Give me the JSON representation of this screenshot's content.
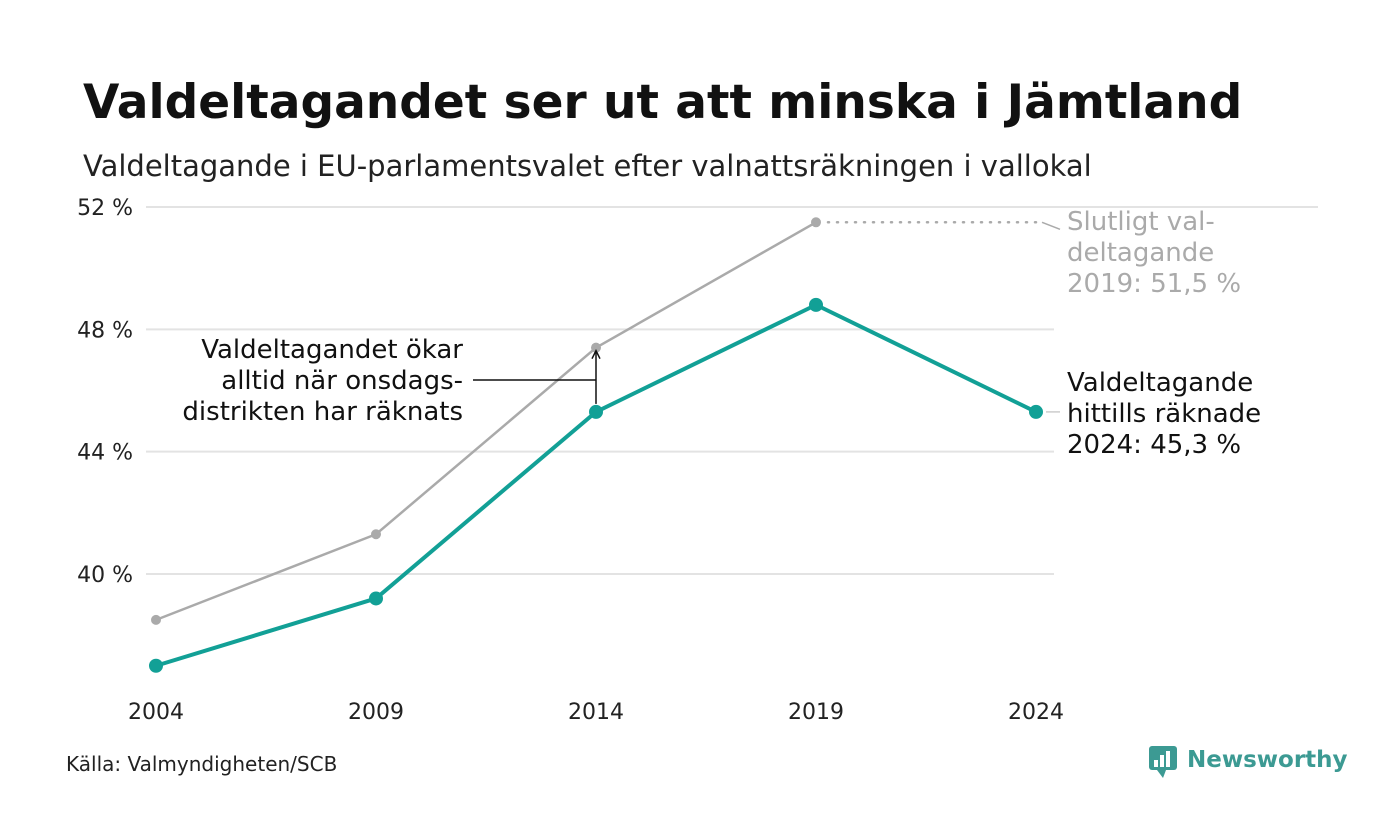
{
  "title": "Valdeltagandet ser ut att minska i Jämtland",
  "subtitle": "Valdeltagande i EU-parlamentsvalet efter valnattsräkningen i vallokal",
  "source": "Källa: Valmyndigheten/SCB",
  "brand": {
    "name": "Newsworthy",
    "icon": "newsworthy-logo-icon",
    "color": "#3c9a93"
  },
  "colors": {
    "counted": "#12a096",
    "final": "#aaaaaa",
    "grid": "#e3e3e3",
    "text": "#222222"
  },
  "chart_data": {
    "type": "line",
    "x": [
      2004,
      2009,
      2014,
      2019,
      2024
    ],
    "series": [
      {
        "id": "final",
        "values": [
          38.5,
          41.3,
          47.4,
          51.5,
          null
        ],
        "color": "#aaaaaa"
      },
      {
        "id": "counted",
        "values": [
          37.0,
          39.2,
          45.3,
          48.8,
          45.3
        ],
        "color": "#12a096"
      }
    ],
    "ylim": [
      36.4,
      52.2
    ],
    "yticks": [
      52,
      48,
      44,
      40
    ],
    "ytick_labels": [
      "52 %",
      "48 %",
      "44 %",
      "40 %"
    ],
    "xtick_labels": [
      "2004",
      "2009",
      "2014",
      "2019",
      "2024"
    ],
    "grid": true,
    "annotations": {
      "final": [
        "Slutligt val-",
        "deltagande",
        "2019: 51,5 %"
      ],
      "counted": [
        "Valdeltagande",
        "hittills räknade",
        "2024: 45,3 %"
      ],
      "wednesday": [
        "Valdeltagandet ökar",
        "alltid när onsdags-",
        "distrikten har räknats"
      ]
    }
  }
}
